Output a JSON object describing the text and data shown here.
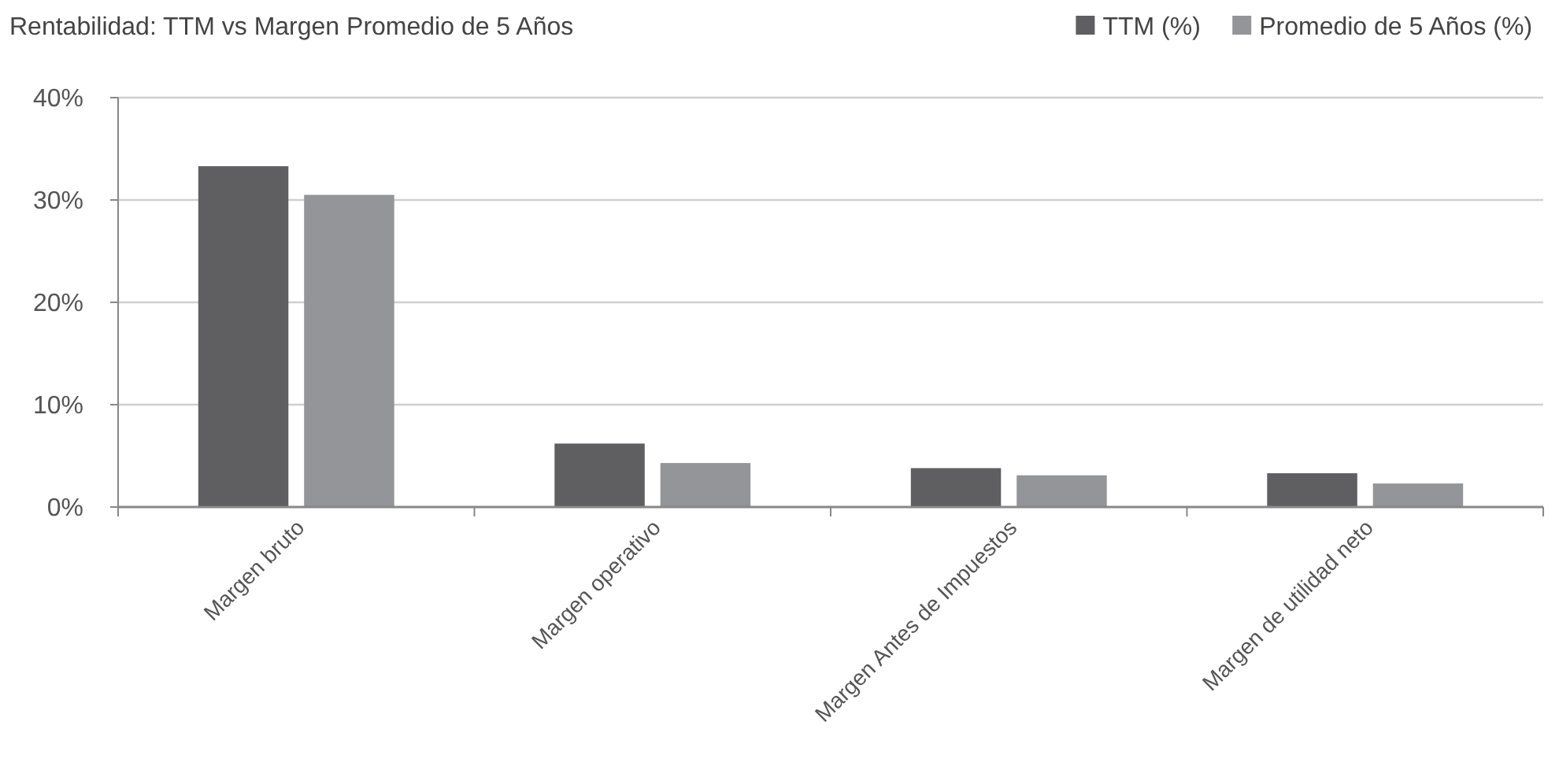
{
  "chart_data": {
    "type": "bar",
    "title": "Rentabilidad: TTM vs Margen Promedio de 5 Años",
    "categories": [
      "Margen bruto",
      "Margen operativo",
      "Margen Antes de Impuestos",
      "Margen de utilidad neto"
    ],
    "series": [
      {
        "name": "TTM (%)",
        "color": "#5f5f61",
        "values": [
          33.3,
          6.2,
          3.8,
          3.3
        ]
      },
      {
        "name": "Promedio de 5 Años (%)",
        "color": "#949598",
        "values": [
          30.5,
          4.3,
          3.1,
          2.3
        ]
      }
    ],
    "ylim": [
      0,
      40
    ],
    "yticks": [
      {
        "value": 0,
        "label": "0%"
      },
      {
        "value": 10,
        "label": "10%"
      },
      {
        "value": 20,
        "label": "20%"
      },
      {
        "value": 30,
        "label": "30%"
      },
      {
        "value": 40,
        "label": "40%"
      }
    ],
    "grid": "y",
    "legend": "top right"
  }
}
